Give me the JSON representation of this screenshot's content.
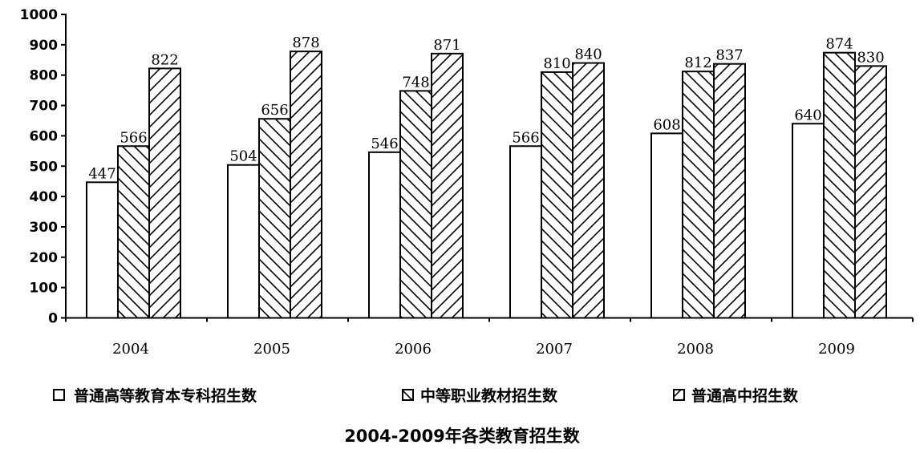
{
  "chart_data": {
    "type": "bar",
    "title": "2004-2009年各类教育招生数",
    "categories": [
      "2004",
      "2005",
      "2006",
      "2007",
      "2008",
      "2009"
    ],
    "series": [
      {
        "name": "普通高等教育本专科招生数",
        "values": [
          447,
          504,
          546,
          566,
          608,
          640
        ],
        "pattern": "none"
      },
      {
        "name": "中等职业教材招生数",
        "values": [
          566,
          656,
          748,
          810,
          812,
          874
        ],
        "pattern": "backslash-hatch"
      },
      {
        "name": "普通高中招生数",
        "values": [
          822,
          878,
          871,
          840,
          837,
          830
        ],
        "pattern": "slash-hatch"
      }
    ],
    "ylim": [
      0,
      1000
    ],
    "yticks": [
      0,
      100,
      200,
      300,
      400,
      500,
      600,
      700,
      800,
      900,
      1000
    ],
    "xlabel": "",
    "ylabel": "",
    "grid": false,
    "legend_position": "bottom",
    "colors": {
      "bar_fill": "#ffffff",
      "stroke": "#000000"
    }
  }
}
